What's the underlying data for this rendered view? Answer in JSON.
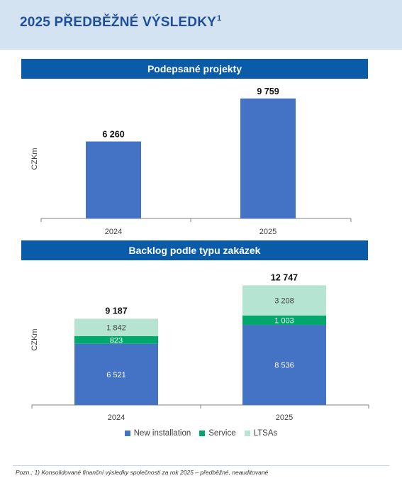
{
  "header": {
    "title": "2025 PŘEDBĚŽNÉ VÝSLEDKY",
    "title_sup": "1"
  },
  "chart_data": [
    {
      "type": "bar",
      "title": "Podepsané projekty",
      "ylabel": "CZKm",
      "categories": [
        "2024",
        "2025"
      ],
      "values": [
        6260,
        9759
      ],
      "value_labels": [
        "6 260",
        "9 759"
      ],
      "ylim": [
        0,
        10500
      ],
      "grid": false,
      "colors": [
        "#4472c4"
      ]
    },
    {
      "type": "bar",
      "stacked": true,
      "title": "Backlog podle typu zakázek",
      "ylabel": "CZKm",
      "categories": [
        "2024",
        "2025"
      ],
      "series": [
        {
          "name": "New installation",
          "values": [
            6521,
            8536
          ],
          "labels": [
            "6 521",
            "8 536"
          ],
          "color": "#4472c4"
        },
        {
          "name": "Service",
          "values": [
            823,
            1003
          ],
          "labels": [
            "823",
            "1 003"
          ],
          "color": "#00a86b"
        },
        {
          "name": "LTSAs",
          "values": [
            1842,
            3208
          ],
          "labels": [
            "1 842",
            "3 208"
          ],
          "color": "#b5e5d2"
        }
      ],
      "totals": [
        9187,
        12747
      ],
      "total_labels": [
        "9 187",
        "12 747"
      ],
      "ylim": [
        0,
        13300
      ],
      "grid": false,
      "legend_position": "bottom"
    }
  ],
  "footer": {
    "note": "Pozn.: 1) Konsolidované finanční výsledky společnosti za rok 2025 – předběžné, neauditované"
  }
}
